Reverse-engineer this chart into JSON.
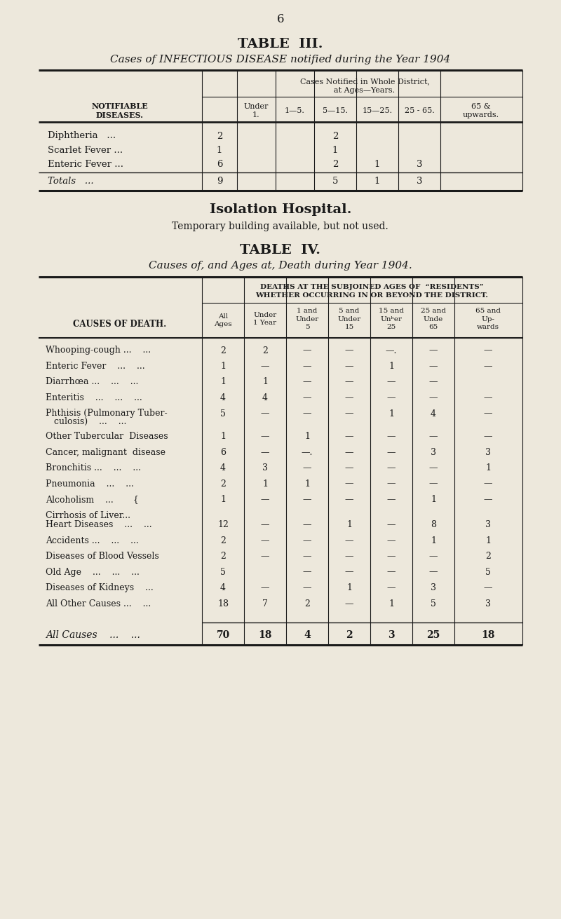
{
  "bg_color": "#ede8dc",
  "text_color": "#1a1a1a",
  "page_number": "6",
  "table3_title": "TABLE  III.",
  "table3_subtitle": "Cases of INFECTIOUS DISEASE notified during the Year 1904",
  "isolation_title": "Isolation Hospital.",
  "isolation_text": "Temporary building available, but not used.",
  "table4_title": "TABLE  IV.",
  "table4_subtitle": "Causes of, and Ages at, Death during Year 1904.",
  "t3_diseases": [
    "Diphtheria   ...",
    "Scarlet Fever ...",
    "Enteric Fever ..."
  ],
  "t3_vals": [
    [
      "2",
      "",
      "",
      "2",
      "",
      "",
      ""
    ],
    [
      "1",
      "",
      "",
      "1",
      "",
      "",
      ""
    ],
    [
      "6",
      "",
      "",
      "2",
      "1",
      "3",
      ""
    ]
  ],
  "t3_totals": [
    "9",
    "",
    "",
    "5",
    "1",
    "3",
    ""
  ],
  "t4_rows": [
    [
      "Whooping-cough ...    ...",
      "2",
      "2",
      "—",
      "—",
      "—.",
      "—",
      "—"
    ],
    [
      "Enteric Fever    ...    ...",
      "1",
      "—",
      "—",
      "—",
      "1",
      "—",
      "—"
    ],
    [
      "Diarrhœa ...    ...    ...",
      "1",
      "1",
      "—",
      "—",
      "—",
      "—",
      ""
    ],
    [
      "Enteritis    ...    ...    ...",
      "4",
      "4",
      "—",
      "—",
      "—",
      "—",
      "—"
    ],
    [
      "Phthisis (Pulmonary Tuber-",
      "5",
      "—",
      "—",
      "—",
      "1",
      "4",
      "—"
    ],
    [
      "   culosis)    ...    ...",
      "",
      "",
      "",
      "",
      "",
      "",
      ""
    ],
    [
      "Other Tubercular  Diseases",
      "1",
      "—",
      "1",
      "—",
      "—",
      "—",
      "—"
    ],
    [
      "Cancer, malignant  disease",
      "6",
      "—",
      "—.",
      "—",
      "—",
      "3",
      "3"
    ],
    [
      "Bronchitis ...    ...    ...",
      "4",
      "3",
      "—",
      "—",
      "—",
      "—",
      "1"
    ],
    [
      "Pneumonia    ...    ...",
      "2",
      "1",
      "1",
      "—",
      "—",
      "—",
      "—"
    ],
    [
      "Alcoholism    ...       {",
      "1",
      "—",
      "—",
      "—",
      "—",
      "1",
      "—"
    ],
    [
      "Cirrhosis of Liver...",
      "",
      "",
      "",
      "",
      "",
      "",
      ""
    ],
    [
      "Heart Diseases    ...    ...",
      "12",
      "—",
      "—",
      "1",
      "—",
      "8",
      "3"
    ],
    [
      "Accidents ...    ...    ...",
      "2",
      "—",
      "—",
      "—",
      "—",
      "1",
      "1"
    ],
    [
      "Diseases of Blood Vessels",
      "2",
      "—",
      "—",
      "—",
      "—",
      "—",
      "2"
    ],
    [
      "Old Age    ...    ...    ...",
      "5",
      "",
      "—",
      "—",
      "—",
      "—",
      "5"
    ],
    [
      "Diseases of Kidneys    ...",
      "4",
      "—",
      "—",
      "1",
      "—",
      "3",
      "—"
    ],
    [
      "All Other Causes ...    ...",
      "18",
      "7",
      "2",
      "—",
      "1",
      "5",
      "3"
    ]
  ],
  "t4_totals": [
    "All Causes    ...    ...",
    "70",
    "18",
    "4",
    "2",
    "3",
    "25",
    "18"
  ],
  "t4_phthisis_combined": true
}
